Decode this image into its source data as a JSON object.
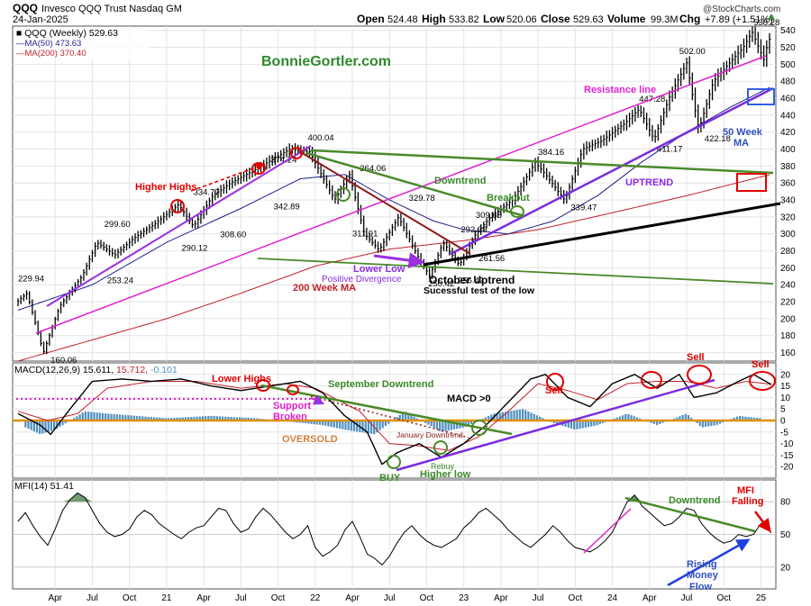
{
  "header": {
    "symbol": "QQQ",
    "name": "Invesco QQQ Trust Nasdaq GM",
    "date": "24-Jan-2025",
    "open_label": "Open",
    "open": "524.48",
    "high_label": "High",
    "high": "533.82",
    "low_label": "Low",
    "low": "520.06",
    "close_label": "Close",
    "close": "529.63",
    "volume_label": "Volume",
    "volume": "99.3M",
    "chg_label": "Chg",
    "chg": "+7.89 (+1.51%)",
    "watermark": "@StockCharts.com",
    "brand": "BonnieGortler.com"
  },
  "colors": {
    "price": "#000000",
    "ma50": "#1f1f8f",
    "ma200": "#c0202a",
    "trend_green": "#4a8a2a",
    "trend_magenta": "#e020d0",
    "trend_purple": "#8a2be2",
    "trend_brown": "#8b1a1a",
    "annotation_red": "#e00000",
    "annotation_blue": "#3050c0",
    "hist_blue": "#4f8fbf",
    "zero_line": "#e09000",
    "mfi_fill": "#5a8a5a"
  },
  "chart_data": [
    {
      "type": "line",
      "panel": "price",
      "title": "QQQ (Weekly) 529.63",
      "ylim": [
        150,
        545
      ],
      "y_ticks": [
        160,
        180,
        200,
        220,
        240,
        260,
        280,
        300,
        320,
        340,
        360,
        380,
        400,
        420,
        440,
        460,
        480,
        500,
        520,
        540
      ],
      "x_ticks": [
        "Apr",
        "Jul",
        "Oct",
        "21",
        "Apr",
        "Jul",
        "Oct",
        "22",
        "Apr",
        "Jul",
        "Oct",
        "23",
        "Apr",
        "Jul",
        "Oct",
        "24",
        "Apr",
        "Jul",
        "Oct",
        "25"
      ],
      "x_tick_t": [
        2020.25,
        2020.5,
        2020.75,
        2021.0,
        2021.25,
        2021.5,
        2021.75,
        2022.0,
        2022.25,
        2022.5,
        2022.75,
        2023.0,
        2023.25,
        2023.5,
        2023.75,
        2024.0,
        2024.25,
        2024.5,
        2024.75,
        2025.0
      ],
      "legend": [
        {
          "label": "QQQ (Weekly) 529.63",
          "color": "#000000"
        },
        {
          "label": "MA(50) 473.63",
          "color": "#1f1f8f"
        },
        {
          "label": "MA(200) 370.40",
          "color": "#c0202a"
        }
      ],
      "series": [
        {
          "name": "QQQ (Weekly)",
          "t": [
            2020.0,
            2020.08,
            2020.19,
            2020.3,
            2020.45,
            2020.55,
            2020.67,
            2020.8,
            2020.95,
            2021.1,
            2021.2,
            2021.33,
            2021.45,
            2021.6,
            2021.85,
            2021.98,
            2022.15,
            2022.25,
            2022.35,
            2022.45,
            2022.58,
            2022.72,
            2022.79,
            2022.88,
            2022.99,
            2023.1,
            2023.2,
            2023.35,
            2023.5,
            2023.57,
            2023.7,
            2023.82,
            2023.95,
            2024.1,
            2024.2,
            2024.3,
            2024.4,
            2024.52,
            2024.6,
            2024.7,
            2024.8,
            2024.9,
            2024.96,
            2025.04,
            2025.07
          ],
          "values": [
            218,
            229.94,
            160.06,
            215,
            250,
            290,
            275,
            295,
            313,
            334.77,
            308.6,
            345,
            360,
            374.24,
            400.04,
            397,
            340,
            370,
            300,
            281,
            320,
            270,
            250.42,
            290,
            263,
            300,
            320,
            340,
            384.16,
            370,
            339.47,
            400,
            410,
            430,
            447.28,
            411.17,
            460,
            502,
            422.18,
            480,
            500,
            520,
            538.28,
            505,
            529.63
          ]
        },
        {
          "name": "MA(50)",
          "t": [
            2020.0,
            2020.5,
            2021.0,
            2021.5,
            2021.9,
            2022.2,
            2022.5,
            2022.8,
            2023.0,
            2023.3,
            2023.6,
            2023.9,
            2024.2,
            2024.5,
            2024.8,
            2025.07
          ],
          "values": [
            210,
            240,
            290,
            330,
            365,
            370,
            340,
            315,
            305,
            300,
            315,
            345,
            385,
            420,
            450,
            473.63
          ]
        },
        {
          "name": "MA(200)",
          "t": [
            2020.0,
            2020.5,
            2021.0,
            2021.5,
            2022.0,
            2022.5,
            2023.0,
            2023.5,
            2024.0,
            2024.5,
            2025.07
          ],
          "values": [
            150,
            175,
            200,
            230,
            262,
            282,
            292,
            305,
            325,
            345,
            370.4
          ]
        }
      ],
      "price_labels": [
        {
          "text": "229.94",
          "t": 2020.0,
          "v": 244
        },
        {
          "text": "160.06",
          "t": 2020.22,
          "v": 148
        },
        {
          "text": "299.60",
          "t": 2020.58,
          "v": 308
        },
        {
          "text": "253.24",
          "t": 2020.6,
          "v": 242
        },
        {
          "text": "290.12",
          "t": 2021.1,
          "v": 280
        },
        {
          "text": "334.77",
          "t": 2021.18,
          "v": 346
        },
        {
          "text": "308.60",
          "t": 2021.36,
          "v": 296
        },
        {
          "text": "374.24",
          "t": 2021.7,
          "v": 384
        },
        {
          "text": "342.89",
          "t": 2021.72,
          "v": 329
        },
        {
          "text": "400.04",
          "t": 2021.95,
          "v": 410
        },
        {
          "text": "364.06",
          "t": 2022.3,
          "v": 374
        },
        {
          "text": "311.91",
          "t": 2022.25,
          "v": 297
        },
        {
          "text": "329.78",
          "t": 2022.63,
          "v": 339
        },
        {
          "text": "292.39",
          "t": 2022.98,
          "v": 302
        },
        {
          "text": "250.42",
          "t": 2022.76,
          "v": 238
        },
        {
          "text": "256.42",
          "t": 2022.96,
          "v": 242
        },
        {
          "text": "261.56",
          "t": 2023.1,
          "v": 268
        },
        {
          "text": "309.68",
          "t": 2023.08,
          "v": 319
        },
        {
          "text": "384.16",
          "t": 2023.5,
          "v": 393
        },
        {
          "text": "339.47",
          "t": 2023.72,
          "v": 328
        },
        {
          "text": "447.28",
          "t": 2024.18,
          "v": 456
        },
        {
          "text": "411.17",
          "t": 2024.3,
          "v": 397
        },
        {
          "text": "502.00",
          "t": 2024.45,
          "v": 512
        },
        {
          "text": "422.18",
          "t": 2024.62,
          "v": 409
        },
        {
          "text": "538.28",
          "t": 2024.95,
          "v": 546
        }
      ],
      "annotations": {
        "resistance_line": "Resistance line",
        "ma50_label_1": "50 Week",
        "ma50_label_2": "MA",
        "downtrend": "Downtrend",
        "breakout": "Breakout",
        "uptrend": "UPTREND",
        "higher_highs": "Higher Highs",
        "lower_low": "Lower Low",
        "positive_divergence": "Positive Divergence",
        "ma200_label": "200 Week MA",
        "october_uptrend": "October Uptrend",
        "successful_test": "Sucessful test of the low"
      }
    },
    {
      "type": "line",
      "panel": "macd",
      "title": "MACD(12,26,9) 15.611, 15.712, -0.101",
      "title_main": "MACD(12,26,9) 15.611,",
      "title_signal": "15.712,",
      "title_hist": "-0.101",
      "ylim": [
        -25,
        25
      ],
      "y_ticks": [
        -20,
        -15,
        -10,
        -5,
        0,
        5,
        10,
        15,
        20
      ],
      "series": [
        {
          "name": "MACD",
          "t": [
            2020.0,
            2020.15,
            2020.22,
            2020.35,
            2020.5,
            2020.7,
            2020.9,
            2021.1,
            2021.3,
            2021.5,
            2021.7,
            2021.9,
            2022.05,
            2022.2,
            2022.35,
            2022.45,
            2022.55,
            2022.7,
            2022.85,
            2023.0,
            2023.15,
            2023.3,
            2023.45,
            2023.55,
            2023.7,
            2023.85,
            2024.0,
            2024.15,
            2024.3,
            2024.45,
            2024.55,
            2024.7,
            2024.85,
            2024.95,
            2025.07
          ],
          "values": [
            3,
            -2,
            -6,
            5,
            17,
            18,
            17,
            18,
            15,
            13,
            15,
            17,
            12,
            2,
            -5,
            -19,
            -14,
            -10,
            -16,
            -10,
            -2,
            8,
            18,
            20,
            10,
            6,
            16,
            20,
            14,
            20,
            10,
            12,
            17,
            20,
            15.6
          ]
        },
        {
          "name": "Signal",
          "t": [
            2020.0,
            2020.2,
            2020.4,
            2020.6,
            2020.9,
            2021.2,
            2021.5,
            2021.8,
            2022.0,
            2022.3,
            2022.5,
            2022.7,
            2022.9,
            2023.1,
            2023.3,
            2023.5,
            2023.7,
            2023.9,
            2024.1,
            2024.3,
            2024.5,
            2024.7,
            2024.9,
            2025.07
          ],
          "values": [
            4,
            0,
            3,
            14,
            17,
            17,
            14,
            16,
            14,
            4,
            -10,
            -11,
            -13,
            -7,
            4,
            16,
            13,
            9,
            16,
            17,
            17,
            14,
            17,
            15.7
          ]
        },
        {
          "name": "Histogram",
          "t": [
            2020.05,
            2020.15,
            2020.25,
            2020.45,
            2020.6,
            2021.0,
            2021.3,
            2021.6,
            2022.05,
            2022.2,
            2022.4,
            2022.6,
            2022.85,
            2023.0,
            2023.2,
            2023.4,
            2023.6,
            2023.75,
            2023.9,
            2024.1,
            2024.3,
            2024.5,
            2024.6,
            2024.7,
            2024.85,
            2025.0
          ],
          "values": [
            -3,
            -6,
            -4,
            4,
            3,
            1,
            2,
            1,
            -2,
            -4,
            -6,
            4,
            -5,
            -3,
            3,
            5,
            -1,
            -4,
            -2,
            3,
            -2,
            3,
            -3,
            -2,
            2,
            1
          ]
        }
      ],
      "annotations": {
        "lower_highs": "Lower Highs",
        "support_1": "Support",
        "support_2": "Broken",
        "oversold": "OVERSOLD",
        "september_downtrend": "September Downtrend",
        "macd_gt0": "MACD >0",
        "january_downtrend": "January Downtrend",
        "rebuy": "Rebuy",
        "buy": "BUY",
        "higher_low": "Higher low",
        "sell": "Sell"
      }
    },
    {
      "type": "line",
      "panel": "mfi",
      "title": "MFI(14) 51.41",
      "ylim": [
        0,
        100
      ],
      "y_ticks": [
        20,
        50,
        80
      ],
      "series": [
        {
          "name": "MFI",
          "t": [
            2020.0,
            2020.05,
            2020.1,
            2020.15,
            2020.2,
            2020.25,
            2020.3,
            2020.35,
            2020.4,
            2020.45,
            2020.5,
            2020.55,
            2020.6,
            2020.65,
            2020.7,
            2020.75,
            2020.8,
            2020.85,
            2020.9,
            2020.95,
            2021.0,
            2021.05,
            2021.1,
            2021.15,
            2021.2,
            2021.25,
            2021.3,
            2021.35,
            2021.4,
            2021.45,
            2021.5,
            2021.55,
            2021.6,
            2021.65,
            2021.7,
            2021.75,
            2021.8,
            2021.85,
            2021.9,
            2021.95,
            2022.0,
            2022.05,
            2022.1,
            2022.15,
            2022.2,
            2022.25,
            2022.3,
            2022.35,
            2022.4,
            2022.45,
            2022.5,
            2022.55,
            2022.6,
            2022.65,
            2022.7,
            2022.75,
            2022.8,
            2022.85,
            2022.9,
            2022.95,
            2023.0,
            2023.05,
            2023.1,
            2023.15,
            2023.2,
            2023.25,
            2023.3,
            2023.35,
            2023.4,
            2023.45,
            2023.5,
            2023.55,
            2023.6,
            2023.65,
            2023.7,
            2023.75,
            2023.8,
            2023.85,
            2023.9,
            2023.95,
            2024.0,
            2024.05,
            2024.1,
            2024.15,
            2024.2,
            2024.25,
            2024.3,
            2024.35,
            2024.4,
            2024.45,
            2024.5,
            2024.55,
            2024.6,
            2024.65,
            2024.7,
            2024.75,
            2024.8,
            2024.85,
            2024.9,
            2024.95,
            2025.0,
            2025.07
          ],
          "values": [
            62,
            70,
            58,
            48,
            40,
            55,
            72,
            82,
            88,
            84,
            72,
            60,
            52,
            48,
            50,
            55,
            66,
            72,
            68,
            60,
            55,
            50,
            46,
            52,
            56,
            58,
            66,
            74,
            72,
            60,
            52,
            55,
            66,
            74,
            68,
            60,
            52,
            46,
            50,
            58,
            38,
            30,
            34,
            40,
            54,
            62,
            48,
            32,
            28,
            22,
            30,
            42,
            52,
            58,
            50,
            44,
            40,
            38,
            42,
            46,
            56,
            62,
            70,
            74,
            68,
            62,
            54,
            48,
            42,
            38,
            44,
            50,
            58,
            52,
            44,
            38,
            36,
            34,
            38,
            44,
            52,
            66,
            80,
            86,
            76,
            70,
            64,
            58,
            60,
            66,
            74,
            72,
            60,
            52,
            46,
            42,
            44,
            50,
            48,
            50,
            60,
            51.41
          ]
        }
      ],
      "annotations": {
        "downtrend": "Downtrend",
        "mfi_1": "MFI",
        "mfi_2": "Falling",
        "rising_1": "Rising",
        "rising_2": "Money",
        "rising_3": "Flow"
      }
    }
  ]
}
